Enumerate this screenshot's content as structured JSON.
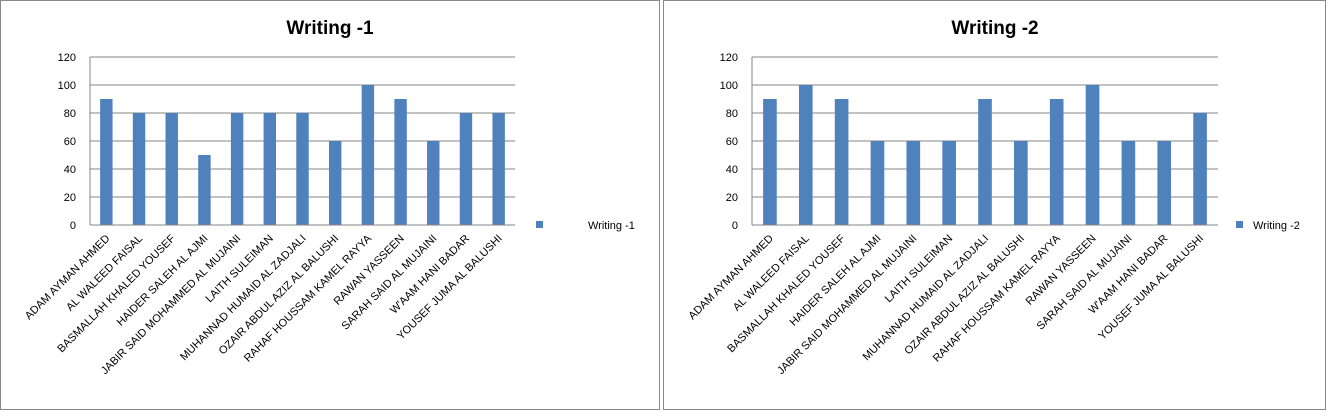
{
  "chart_data": [
    {
      "type": "bar",
      "title": "Writing -1",
      "categories": [
        "ADAM AYMAN AHMED",
        "AL WALEED FAISAL",
        "BASMALLAH KHALED YOUSEF",
        "HAIDER SALEH AL AJMI",
        "JABIR SAID MOHAMMED AL MUJAINI",
        "LAITH SULEIMAN",
        "MUHANNAD HUMAID AL ZADJALI",
        "OZAIR ABDUL AZIZ AL BALUSHI",
        "RAHAF HOUSSAM KAMEL RAYYA",
        "RAWAN YASSEEN",
        "SARAH SAID AL MUJAINI",
        "W'AAM HANI BADAR",
        "YOUSEF JUMA AL BALUSHI"
      ],
      "series": [
        {
          "name": "Writing -1",
          "color": "#4f81bd",
          "values": [
            90,
            80,
            80,
            50,
            80,
            80,
            80,
            60,
            100,
            90,
            60,
            80,
            80
          ]
        }
      ],
      "ylim": [
        0,
        120
      ],
      "yticks": [
        0,
        20,
        40,
        60,
        80,
        100,
        120
      ],
      "grid": true,
      "legend": "right"
    },
    {
      "type": "bar",
      "title": "Writing -2",
      "categories": [
        "ADAM AYMAN AHMED",
        "AL WALEED FAISAL",
        "BASMALLAH KHALED YOUSEF",
        "HAIDER SALEH AL AJMI",
        "JABIR SAID MOHAMMED AL MUJAINI",
        "LAITH SULEIMAN",
        "MUHANNAD HUMAID AL ZADJALI",
        "OZAIR ABDUL AZIZ AL BALUSHI",
        "RAHAF HOUSSAM KAMEL RAYYA",
        "RAWAN YASSEEN",
        "SARAH SAID AL MUJAINI",
        "W'AAM HANI BADAR",
        "YOUSEF JUMA AL BALUSHI"
      ],
      "series": [
        {
          "name": "Writing -2",
          "color": "#4f81bd",
          "values": [
            90,
            100,
            90,
            60,
            60,
            60,
            90,
            60,
            90,
            100,
            60,
            60,
            80
          ]
        }
      ],
      "ylim": [
        0,
        120
      ],
      "yticks": [
        0,
        20,
        40,
        60,
        80,
        100,
        120
      ],
      "grid": true,
      "legend": "right"
    }
  ]
}
